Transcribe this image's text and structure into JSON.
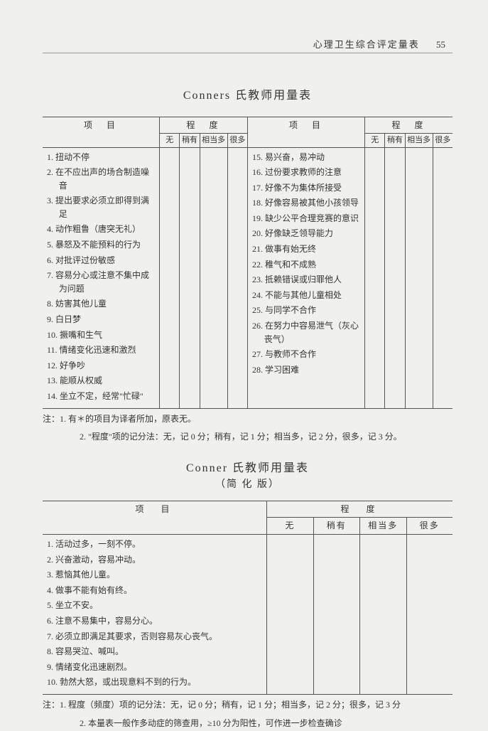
{
  "header": {
    "running_title": "心理卫生综合评定量表",
    "page_number": "55"
  },
  "scale1": {
    "title": "Conners 氏教师用量表",
    "col_item_label": "项　目",
    "col_degree_label": "程　度",
    "degree_labels": [
      "无",
      "稍有",
      "相当多",
      "很多"
    ],
    "items_left": [
      "1. 扭动不停",
      "2. 在不应出声的场合制造噪音",
      "3. 提出要求必须立即得到满足",
      "4. 动作粗鲁（唐突无礼）",
      "5. 暴怒及不能预料的行为",
      "6. 对批评过份敏感",
      "7. 容易分心或注意不集中成为问题",
      "8. 妨害其他儿童",
      "9. 白日梦",
      "10. 撅嘴和生气",
      "11. 情绪变化迅速和激烈",
      "12. 好争吵",
      "13. 能顺从权威",
      "14. 坐立不定，经常\"忙碌\""
    ],
    "items_right": [
      "15. 易兴奋，易冲动",
      "16. 过份要求教师的注意",
      "17. 好像不为集体所接受",
      "18. 好像容易被其他小孩领导",
      "19. 缺少公平合理竞赛的意识",
      "20. 好像缺乏领导能力",
      "21. 做事有始无终",
      "22. 稚气和不成熟",
      "23. 抵赖错误或归罪他人",
      "24. 不能与其他儿童相处",
      "25. 与同学不合作",
      "26. 在努力中容易泄气（灰心丧气）",
      "27. 与教师不合作",
      "28. 学习困难"
    ],
    "notes": [
      "注：1. 有＊的项目为译者所加，原表无。",
      "2. \"程度\"项的记分法：无，记 0 分；稍有，记 1 分；相当多，记 2 分，很多，记 3 分。"
    ]
  },
  "scale2": {
    "title": "Conner 氏教师用量表",
    "subtitle": "（简 化 版）",
    "col_item_label": "项　目",
    "col_degree_label": "程　度",
    "degree_labels": [
      "无",
      "稍有",
      "相当多",
      "很多"
    ],
    "items": [
      "1. 活动过多，一刻不停。",
      "2. 兴奋激动，容易冲动。",
      "3. 惹恼其他儿童。",
      "4. 做事不能有始有终。",
      "5. 坐立不安。",
      "6. 注意不易集中，容易分心。",
      "7. 必须立即满足其要求，否则容易灰心丧气。",
      "8. 容易哭泣、喊叫。",
      "9. 情绪变化迅速剧烈。",
      "10. 勃然大怒，或出现意料不到的行为。"
    ],
    "notes": [
      "注：1. 程度（频度）项的记分法：无，记 0 分；稍有，记 1 分；相当多，记 2 分；很多，记 3 分",
      "2. 本量表一般作多动症的筛查用，≥10 分为阳性，可作进一步检查确诊"
    ]
  },
  "colors": {
    "page_bg": "#f0f0ee",
    "text": "#333333",
    "border": "#555555",
    "rule": "#999999"
  }
}
